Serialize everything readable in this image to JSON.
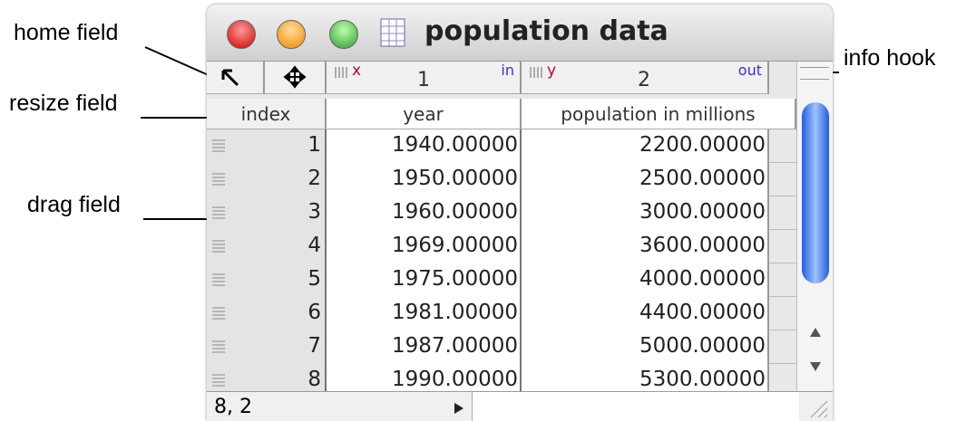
{
  "window": {
    "title": "population data"
  },
  "header": {
    "columns": [
      {
        "label": "x",
        "number": "1",
        "role": "in"
      },
      {
        "label": "y",
        "number": "2",
        "role": "out"
      }
    ],
    "names": [
      "index",
      "year",
      "population in millions"
    ]
  },
  "table": {
    "rows": [
      [
        "1",
        "1940.00000",
        "2200.00000"
      ],
      [
        "2",
        "1950.00000",
        "2500.00000"
      ],
      [
        "3",
        "1960.00000",
        "3000.00000"
      ],
      [
        "4",
        "1969.00000",
        "3600.00000"
      ],
      [
        "5",
        "1975.00000",
        "4000.00000"
      ],
      [
        "6",
        "1981.00000",
        "4400.00000"
      ],
      [
        "7",
        "1987.00000",
        "5000.00000"
      ],
      [
        "8",
        "1990.00000",
        "5300.00000"
      ]
    ]
  },
  "status": {
    "cell": "8, 2"
  },
  "annotations": [
    "home field",
    "resize field",
    "drag field",
    "info hook"
  ]
}
